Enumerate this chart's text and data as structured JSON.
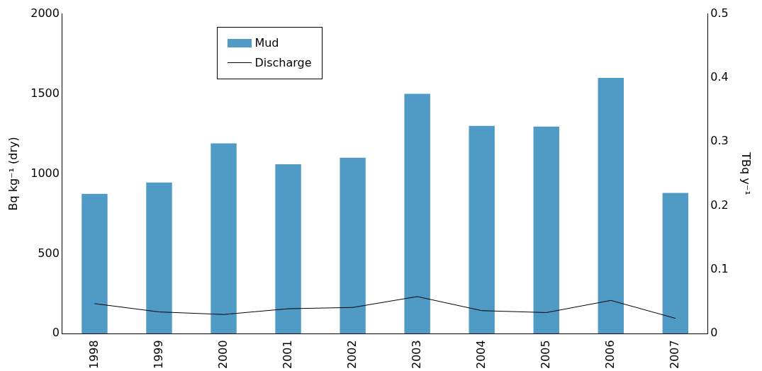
{
  "chart_data": {
    "type": "bar",
    "categories": [
      "1998",
      "1999",
      "2000",
      "2001",
      "2002",
      "2003",
      "2004",
      "2005",
      "2006",
      "2007"
    ],
    "series": [
      {
        "name": "Mud",
        "color": "#4f9bc6",
        "values": [
          875,
          945,
          1190,
          1060,
          1100,
          1500,
          1300,
          1295,
          1600,
          880
        ]
      },
      {
        "name": "Discharge",
        "type": "line",
        "axis": "y2",
        "color": "#000000",
        "values": [
          0.047,
          0.034,
          0.03,
          0.039,
          0.041,
          0.058,
          0.036,
          0.033,
          0.052,
          0.024
        ]
      }
    ],
    "ylabel": "Bq kg⁻¹ (dry)",
    "y2label": "TBq y⁻¹",
    "ylim": [
      0,
      2000
    ],
    "yticks": [
      0,
      500,
      1000,
      1500,
      2000
    ],
    "y2lim": [
      0,
      0.5
    ],
    "y2ticks": [
      0,
      0.1,
      0.2,
      0.3,
      0.4,
      0.5
    ],
    "grid": false,
    "legend": "top left",
    "marker": "none",
    "line_style": "solid"
  }
}
